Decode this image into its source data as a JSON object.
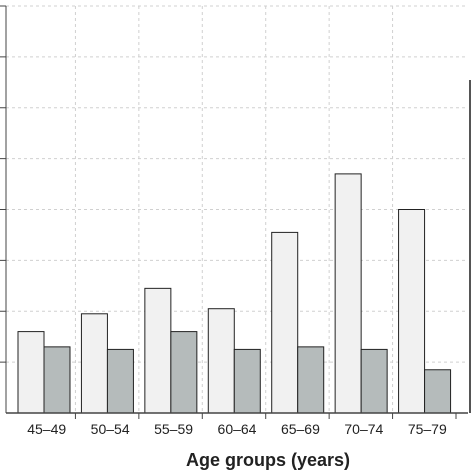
{
  "chart_data": {
    "type": "bar",
    "title": "",
    "xlabel": "Age groups (years)",
    "ylabel": "",
    "categories": [
      "45–49",
      "50–54",
      "55–59",
      "60–64",
      "65–69",
      "70–74",
      "75–79"
    ],
    "series": [
      {
        "values": [
          1.6,
          1.95,
          2.45,
          2.05,
          3.55,
          4.7,
          4.0
        ],
        "color": "#f1f1f1"
      },
      {
        "values": [
          1.3,
          1.25,
          1.6,
          1.25,
          1.3,
          1.25,
          0.85
        ],
        "color": "#b5bbbb"
      }
    ],
    "ylim": [
      0,
      8
    ],
    "grid": true,
    "colors": {
      "bar_stroke": "#222222",
      "grid": "#d0d0d0",
      "axis": "#444444"
    }
  }
}
